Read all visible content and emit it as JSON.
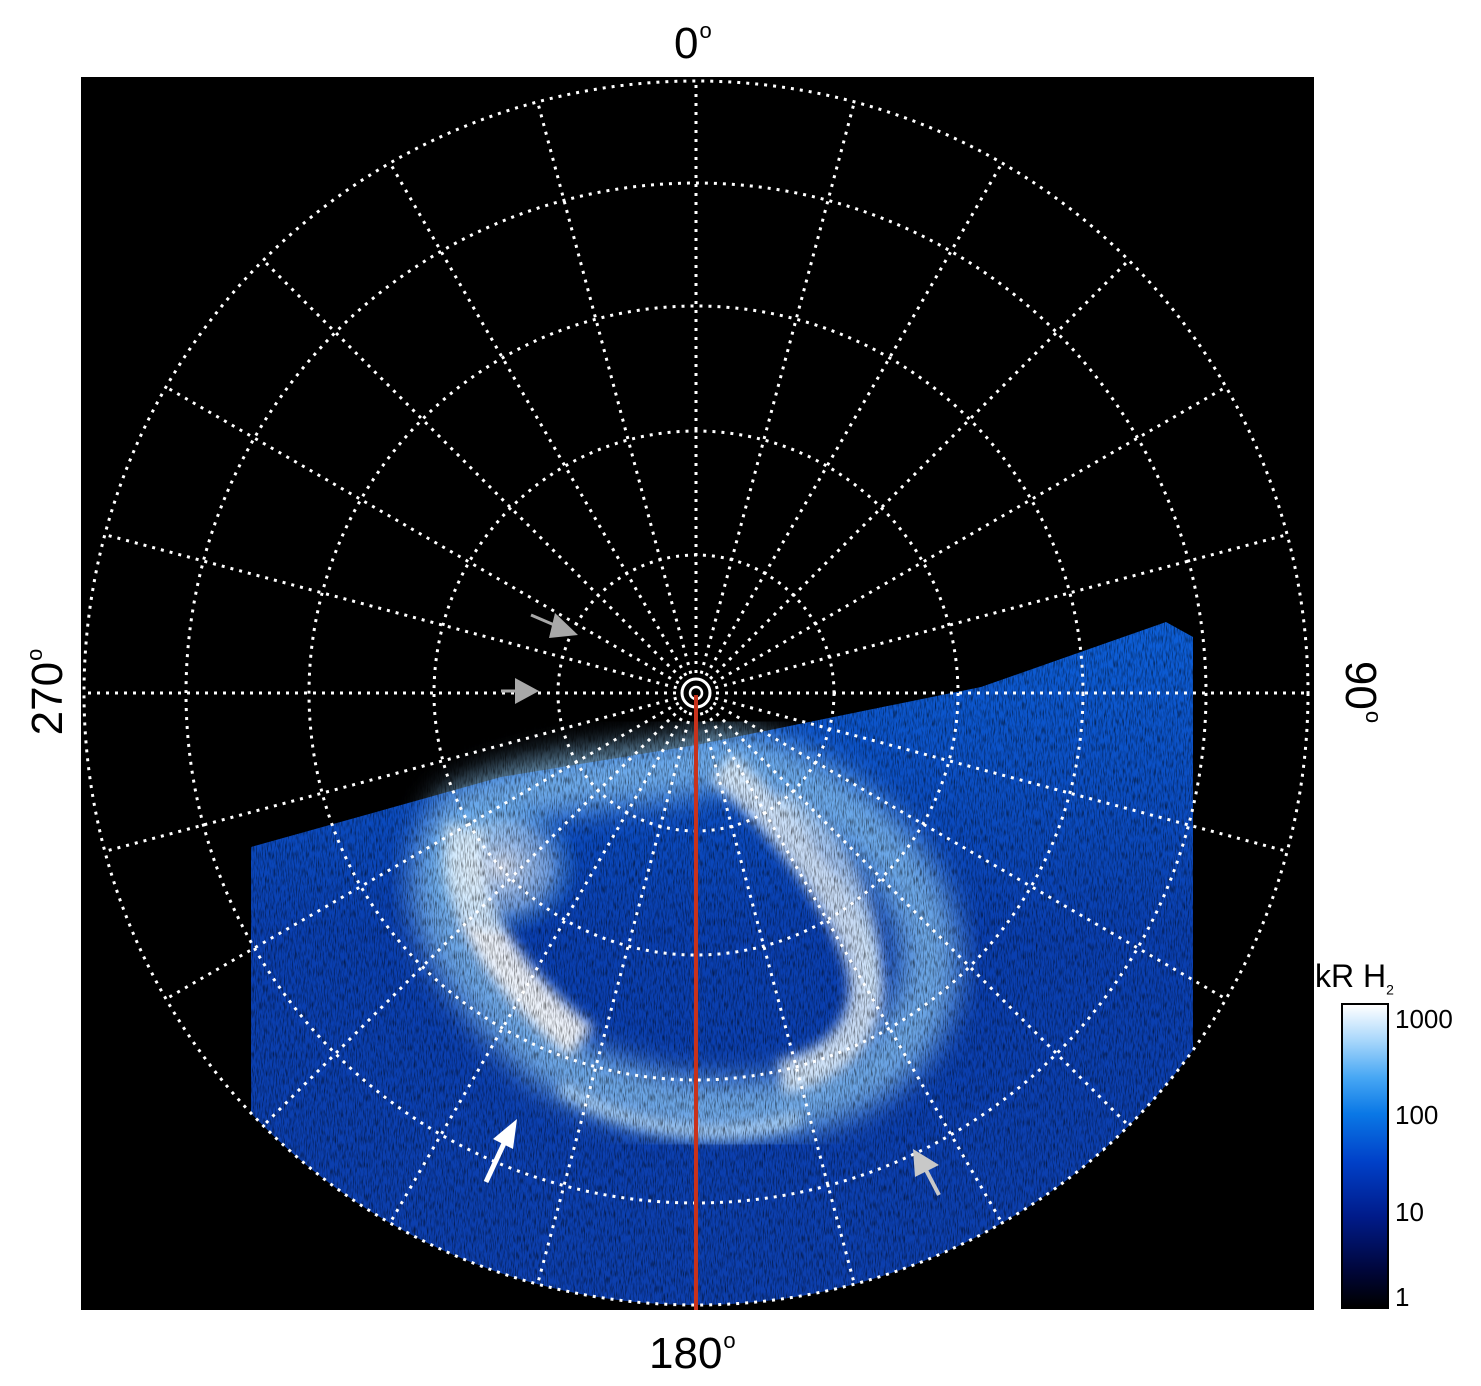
{
  "axis_labels": {
    "top": "0",
    "bottom": "180",
    "left": "270",
    "right": "90",
    "degree_symbol": "o"
  },
  "colorbar": {
    "unit": "kR H",
    "unit_subscript": "2",
    "ticks": [
      "1000",
      "100",
      "10",
      "1"
    ],
    "scale": "log"
  },
  "colors": {
    "background": "#000000",
    "grid": "#ffffff",
    "meridian_line": "#c8321c",
    "emission_low": "#001b8a",
    "emission_high": "#ffffff",
    "arrow_white": "#ffffff",
    "arrow_gray": "#a8a8a8"
  },
  "icons": [
    "arrow-icon-white",
    "arrow-icon-gray"
  ]
}
